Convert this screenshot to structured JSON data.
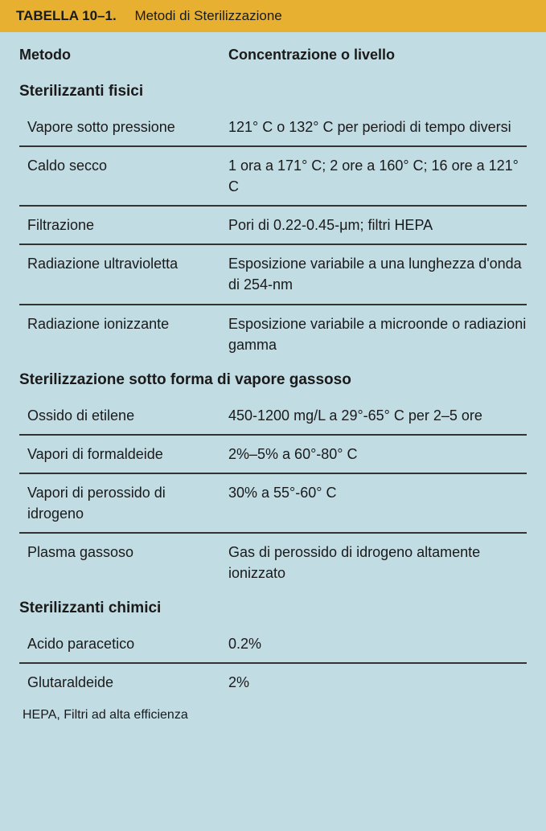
{
  "header": {
    "label": "TABELLA 10–1.",
    "title": "Metodi di Sterilizzazione"
  },
  "columnHeaders": {
    "left": "Metodo",
    "right": "Concentrazione o livello"
  },
  "sections": [
    {
      "title": "Sterilizzanti fisici",
      "rows": [
        {
          "method": "Vapore sotto pressione",
          "value": "121° C o 132° C per periodi di tempo diversi"
        },
        {
          "method": "Caldo secco",
          "value": "1 ora a 171° C; 2 ore a 160° C; 16 ore a 121° C"
        },
        {
          "method": "Filtrazione",
          "value": "Pori di 0.22-0.45-μm; filtri HEPA"
        },
        {
          "method": "Radiazione ultravioletta",
          "value": "Esposizione variabile a una lunghezza d'onda di 254-nm"
        },
        {
          "method": "Radiazione ionizzante",
          "value": "Esposizione variabile a microonde o radiazioni gamma"
        }
      ]
    },
    {
      "title": "Sterilizzazione sotto forma di vapore gassoso",
      "rows": [
        {
          "method": "Ossido di etilene",
          "value": "450-1200 mg/L a 29°-65° C per 2–5 ore"
        },
        {
          "method": "Vapori di formaldeide",
          "value": "2%–5% a 60°-80° C"
        },
        {
          "method": "Vapori di perossido di idrogeno",
          "value": "30% a 55°-60° C"
        },
        {
          "method": "Plasma gassoso",
          "value": "Gas di perossido di idrogeno altamente ionizzato"
        }
      ]
    },
    {
      "title": "Sterilizzanti chimici",
      "rows": [
        {
          "method": "Acido paracetico",
          "value": "0.2%"
        },
        {
          "method": "Glutaraldeide",
          "value": "2%"
        }
      ]
    }
  ],
  "footnote": "HEPA, Filtri ad alta efficienza",
  "colors": {
    "background": "#c2dce4",
    "headerBg": "#e8b030",
    "text": "#1a1a1a",
    "border": "#333333"
  },
  "typography": {
    "fontFamily": "Verdana, Geneva, sans-serif",
    "headerFontSize": 17,
    "sectionTitleFontSize": 19,
    "bodyFontSize": 18,
    "footnoteFontSize": 16
  }
}
